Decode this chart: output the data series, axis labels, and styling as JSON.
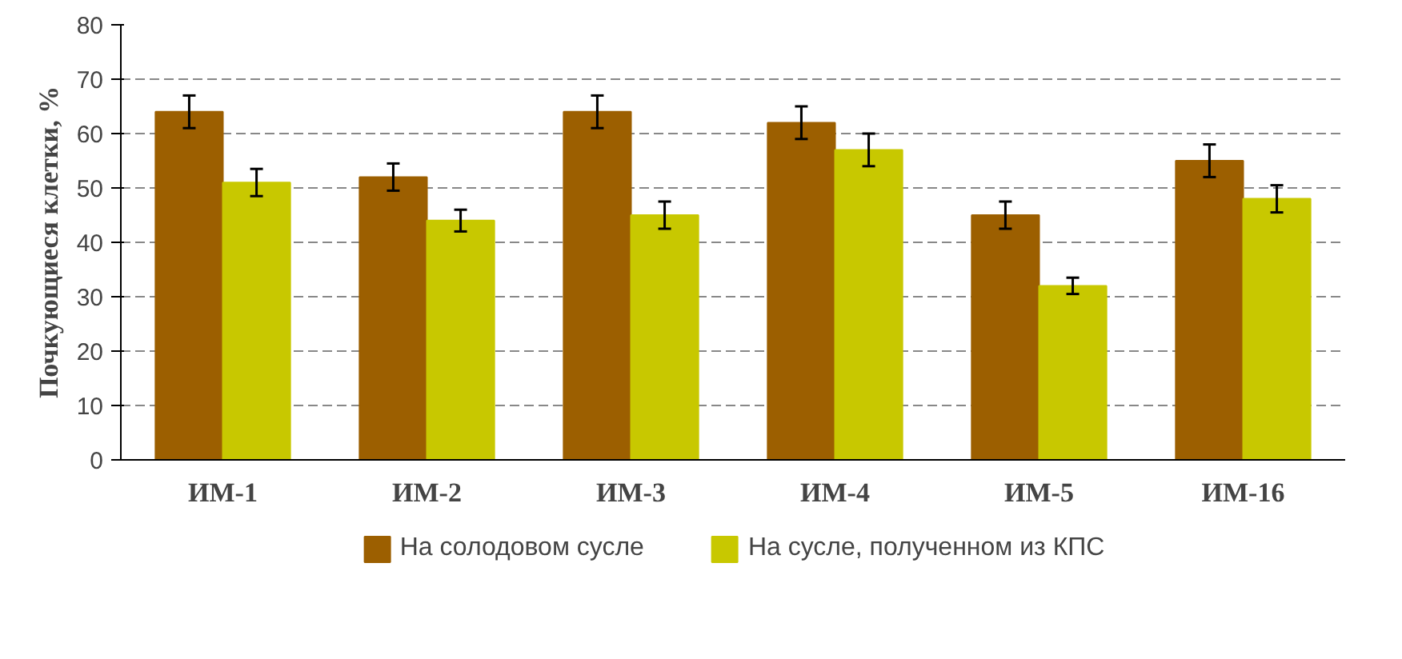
{
  "chart_data": {
    "type": "bar",
    "ylabel": "Почкующиеся клетки, %",
    "categories": [
      "ИМ-1",
      "ИМ-2",
      "ИМ-3",
      "ИМ-4",
      "ИМ-5",
      "ИМ-16"
    ],
    "series": [
      {
        "name": "На солодовом сусле",
        "color": "#9c5f00",
        "values": [
          64,
          52,
          64,
          62,
          45,
          55
        ],
        "errors": [
          3,
          2.5,
          3,
          3,
          2.5,
          3
        ]
      },
      {
        "name": "На сусле, полученном из КПС",
        "color": "#c8c800",
        "values": [
          51,
          44,
          45,
          57,
          32,
          48
        ],
        "errors": [
          2.5,
          2,
          2.5,
          3,
          1.5,
          2.5
        ]
      }
    ],
    "ylim": [
      0,
      80
    ],
    "yticks": [
      0,
      10,
      20,
      30,
      40,
      50,
      60,
      70,
      80
    ],
    "grid": "y",
    "legend": "bottom"
  }
}
